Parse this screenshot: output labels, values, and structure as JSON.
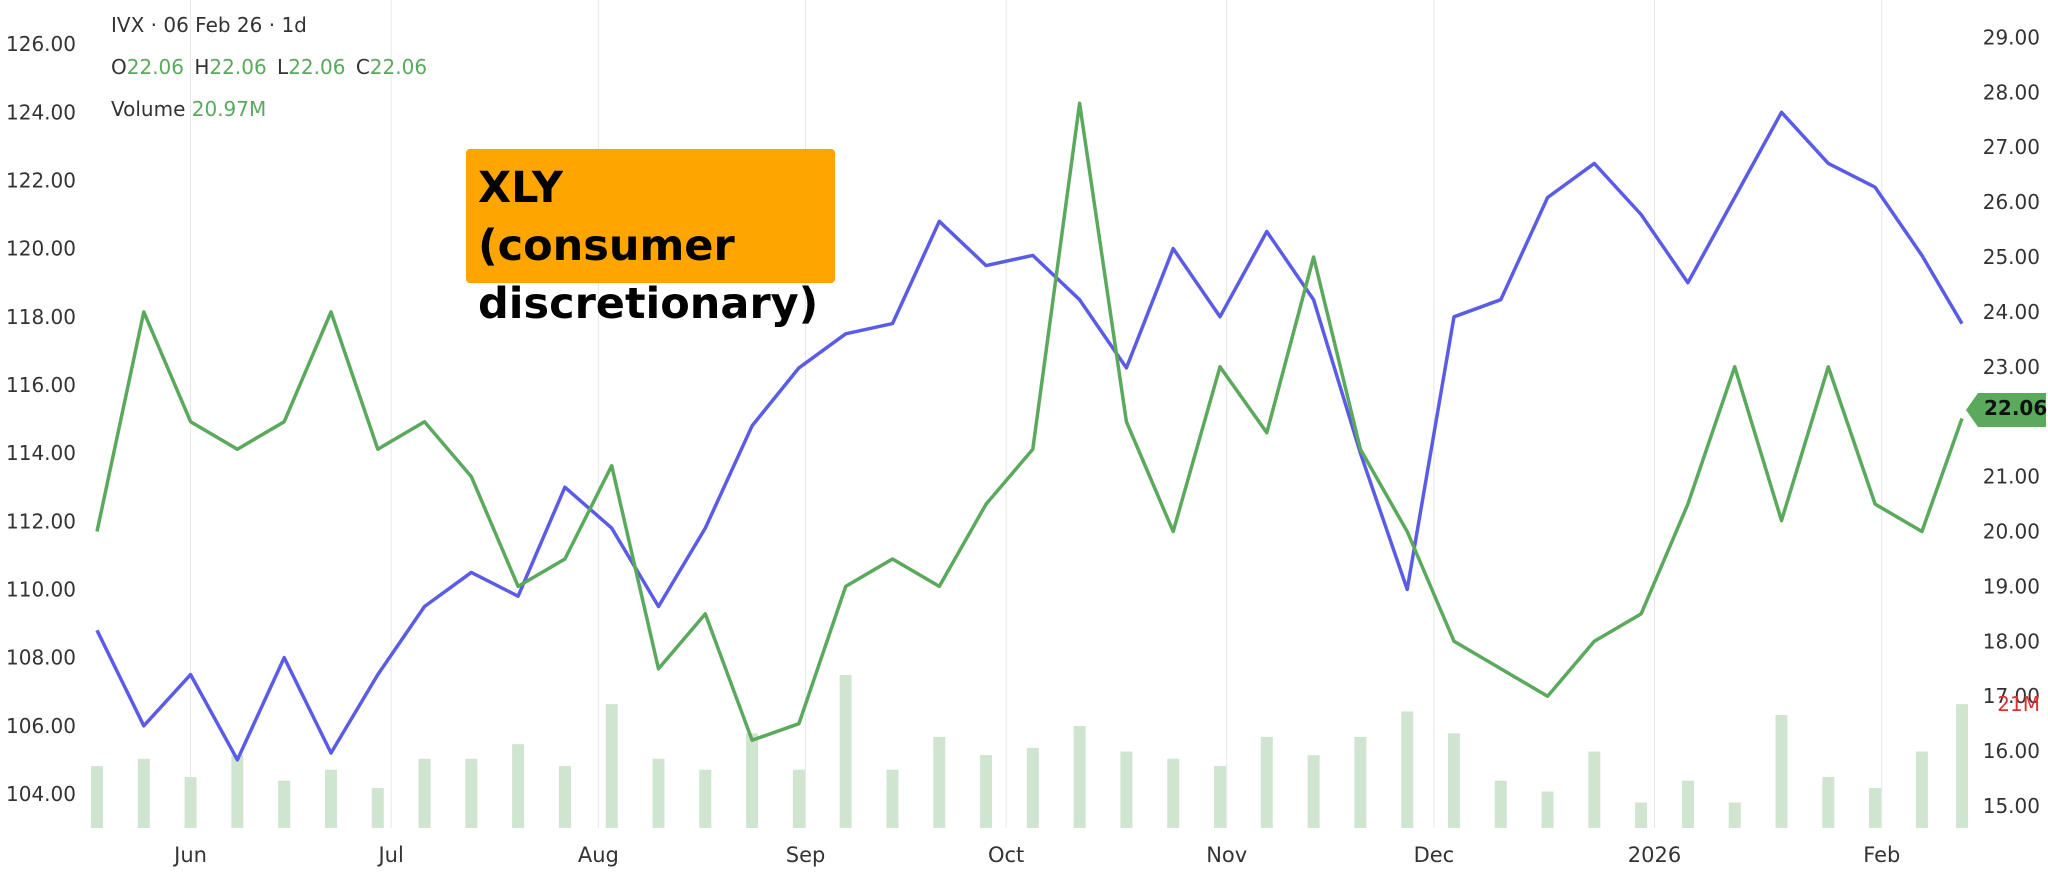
{
  "chart_data": {
    "type": "line",
    "title": "IVX · 06 Feb 26 · 1d",
    "ohlc": {
      "o_label": "O",
      "o": "22.06",
      "h_label": "H",
      "h": "22.06",
      "l_label": "L",
      "l": "22.06",
      "c_label": "C",
      "c": "22.06"
    },
    "volume_label": "Volume",
    "volume_value": "20.97M",
    "annotation": "XLY (consumer discretionary)",
    "left_axis": {
      "ylim": [
        103.0,
        127.0
      ],
      "ticks": [
        "104.00",
        "106.00",
        "108.00",
        "110.00",
        "112.00",
        "114.00",
        "116.00",
        "118.00",
        "120.00",
        "122.00",
        "124.00",
        "126.00"
      ]
    },
    "right_axis": {
      "ylim": [
        14.6,
        29.5
      ],
      "ticks": [
        "15.00",
        "16.00",
        "17.00",
        "18.00",
        "19.00",
        "20.00",
        "21.00",
        "22.00",
        "23.00",
        "24.00",
        "25.00",
        "26.00",
        "27.00",
        "28.00",
        "29.00"
      ],
      "current_price": "22.06",
      "volume_marker": "21M"
    },
    "x_ticks": [
      "Jun",
      "Jul",
      "Aug",
      "Sep",
      "Oct",
      "Nov",
      "Dec",
      "2026",
      "Feb"
    ],
    "x_tick_days": [
      21,
      51,
      82,
      113,
      143,
      176,
      207,
      240,
      274
    ],
    "x_range": [
      7,
      286
    ],
    "grid": true,
    "series": [
      {
        "axis": "left",
        "color": "#5b5ce6",
        "x": [
          7,
          14,
          21,
          28,
          35,
          42,
          49,
          56,
          63,
          70,
          77,
          84,
          91,
          98,
          105,
          112,
          119,
          126,
          133,
          140,
          147,
          154,
          161,
          168,
          175,
          182,
          189,
          196,
          203,
          210,
          217,
          224,
          231,
          238,
          245,
          252,
          259,
          266,
          273,
          280,
          286
        ],
        "values": [
          108.8,
          106.0,
          107.5,
          105.0,
          108.0,
          105.2,
          107.5,
          109.5,
          110.5,
          109.8,
          113.0,
          111.8,
          109.5,
          111.8,
          114.8,
          116.5,
          117.5,
          117.8,
          120.8,
          119.5,
          119.8,
          118.5,
          116.5,
          120.0,
          118.0,
          120.5,
          118.5,
          114.0,
          110.0,
          118.0,
          118.5,
          121.5,
          122.5,
          121.0,
          119.0,
          121.5,
          124.0,
          122.5,
          121.8,
          119.8,
          117.8
        ]
      },
      {
        "axis": "right",
        "color": "#5aa95d",
        "x": [
          7,
          14,
          21,
          28,
          35,
          42,
          49,
          56,
          63,
          70,
          77,
          84,
          91,
          98,
          105,
          112,
          119,
          126,
          133,
          140,
          147,
          154,
          161,
          168,
          175,
          182,
          189,
          196,
          203,
          210,
          217,
          224,
          231,
          238,
          245,
          252,
          259,
          266,
          273,
          280,
          286
        ],
        "values": [
          20.0,
          24.0,
          22.0,
          21.5,
          22.0,
          24.0,
          21.5,
          22.0,
          21.0,
          19.0,
          19.5,
          21.2,
          17.5,
          18.5,
          16.2,
          16.5,
          19.0,
          19.5,
          19.0,
          20.5,
          21.5,
          27.8,
          22.0,
          20.0,
          23.0,
          21.8,
          25.0,
          21.5,
          20.0,
          18.0,
          17.5,
          17.0,
          18.0,
          18.5,
          20.5,
          23.0,
          20.2,
          23.0,
          20.5,
          20.0,
          22.06
        ]
      }
    ],
    "volume_bars": {
      "ylim": [
        0,
        3.5
      ],
      "x": [
        7,
        14,
        21,
        28,
        35,
        42,
        49,
        56,
        63,
        70,
        77,
        84,
        91,
        98,
        105,
        112,
        119,
        126,
        133,
        140,
        147,
        154,
        161,
        168,
        175,
        182,
        189,
        196,
        203,
        210,
        217,
        224,
        231,
        238,
        245,
        252,
        259,
        266,
        273,
        280,
        286
      ],
      "values": [
        0.85,
        0.95,
        0.7,
        1.0,
        0.65,
        0.8,
        0.55,
        0.95,
        0.95,
        1.15,
        0.85,
        1.7,
        0.95,
        0.8,
        1.3,
        0.8,
        2.1,
        0.8,
        1.25,
        1.0,
        1.1,
        1.4,
        1.05,
        0.95,
        0.85,
        1.25,
        1.0,
        1.25,
        1.6,
        1.3,
        0.65,
        0.5,
        1.05,
        0.35,
        0.65,
        0.35,
        1.55,
        0.7,
        0.55,
        1.05,
        1.7
      ]
    }
  }
}
